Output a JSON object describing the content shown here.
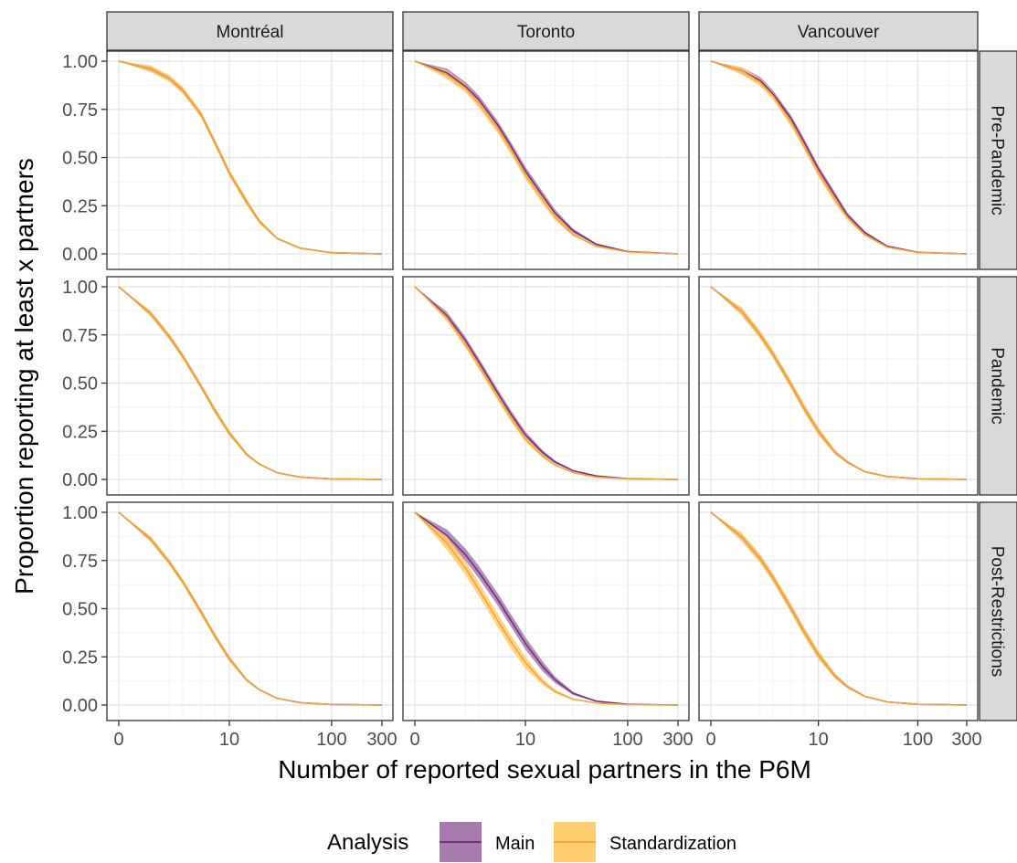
{
  "chart_data": {
    "type": "area",
    "facet_columns": [
      "Montréal",
      "Toronto",
      "Vancouver"
    ],
    "facet_rows": [
      "Pre-Pandemic",
      "Pandemic",
      "Post-Restrictions"
    ],
    "xlabel": "Number of reported sexual partners in the P6M",
    "ylabel": "Proportion reporting at least x partners",
    "x_scale": "pseudo-log (log(1+x))",
    "x_ticks": [
      0,
      10,
      100,
      300
    ],
    "x_tick_labels": [
      "0",
      "10",
      "100",
      "300"
    ],
    "ylim": [
      0,
      1
    ],
    "y_ticks": [
      0,
      0.25,
      0.5,
      0.75,
      1
    ],
    "y_tick_labels": [
      "0.00",
      "0.25",
      "0.50",
      "0.75",
      "1.00"
    ],
    "grid": true,
    "legend": {
      "title": "Analysis",
      "position": "bottom",
      "entries": [
        {
          "name": "Main",
          "fill": "#A87BAF",
          "line": "#7B2D80"
        },
        {
          "name": "Standardization",
          "fill": "#FFCC70",
          "line": "#F4A536"
        }
      ]
    },
    "x_points": [
      0,
      1,
      2,
      3,
      5,
      7,
      10,
      15,
      20,
      30,
      50,
      100,
      300
    ],
    "panels": [
      {
        "city": "Montréal",
        "period": "Pre-Pandemic",
        "main": {
          "y": [
            1,
            0.96,
            0.91,
            0.85,
            0.72,
            0.58,
            0.42,
            0.27,
            0.17,
            0.08,
            0.03,
            0.006,
            0
          ]
        },
        "standardization": {
          "y": [
            1,
            0.96,
            0.91,
            0.85,
            0.72,
            0.58,
            0.42,
            0.27,
            0.17,
            0.08,
            0.03,
            0.006,
            0
          ]
        },
        "band_main": 0.012,
        "band_std": 0.018
      },
      {
        "city": "Toronto",
        "period": "Pre-Pandemic",
        "main": {
          "y": [
            1,
            0.94,
            0.87,
            0.8,
            0.67,
            0.56,
            0.43,
            0.3,
            0.21,
            0.12,
            0.05,
            0.012,
            0
          ]
        },
        "standardization": {
          "y": [
            1,
            0.93,
            0.86,
            0.78,
            0.65,
            0.54,
            0.41,
            0.28,
            0.19,
            0.1,
            0.04,
            0.01,
            0
          ]
        },
        "band_main": 0.022,
        "band_std": 0.022
      },
      {
        "city": "Vancouver",
        "period": "Pre-Pandemic",
        "main": {
          "y": [
            1,
            0.95,
            0.9,
            0.83,
            0.7,
            0.58,
            0.44,
            0.3,
            0.2,
            0.11,
            0.04,
            0.008,
            0
          ]
        },
        "standardization": {
          "y": [
            1,
            0.95,
            0.89,
            0.82,
            0.68,
            0.56,
            0.42,
            0.28,
            0.19,
            0.1,
            0.035,
            0.007,
            0
          ]
        },
        "band_main": 0.018,
        "band_std": 0.02
      },
      {
        "city": "Montréal",
        "period": "Pandemic",
        "main": {
          "y": [
            1,
            0.86,
            0.74,
            0.64,
            0.48,
            0.36,
            0.24,
            0.13,
            0.08,
            0.035,
            0.012,
            0.003,
            0
          ]
        },
        "standardization": {
          "y": [
            1,
            0.86,
            0.74,
            0.64,
            0.48,
            0.36,
            0.24,
            0.13,
            0.08,
            0.035,
            0.012,
            0.003,
            0
          ]
        },
        "band_main": 0.012,
        "band_std": 0.016
      },
      {
        "city": "Toronto",
        "period": "Pandemic",
        "main": {
          "y": [
            1,
            0.85,
            0.72,
            0.61,
            0.45,
            0.34,
            0.23,
            0.14,
            0.09,
            0.045,
            0.018,
            0.004,
            0
          ]
        },
        "standardization": {
          "y": [
            1,
            0.84,
            0.7,
            0.59,
            0.43,
            0.32,
            0.21,
            0.12,
            0.075,
            0.035,
            0.012,
            0.003,
            0
          ]
        },
        "band_main": 0.02,
        "band_std": 0.018
      },
      {
        "city": "Vancouver",
        "period": "Pandemic",
        "main": {
          "y": [
            1,
            0.87,
            0.75,
            0.65,
            0.49,
            0.37,
            0.25,
            0.14,
            0.09,
            0.04,
            0.015,
            0.004,
            0
          ]
        },
        "standardization": {
          "y": [
            1,
            0.87,
            0.75,
            0.65,
            0.49,
            0.37,
            0.25,
            0.14,
            0.09,
            0.04,
            0.015,
            0.004,
            0
          ]
        },
        "band_main": 0.016,
        "band_std": 0.022
      },
      {
        "city": "Montréal",
        "period": "Post-Restrictions",
        "main": {
          "y": [
            1,
            0.86,
            0.74,
            0.64,
            0.48,
            0.36,
            0.24,
            0.13,
            0.08,
            0.035,
            0.012,
            0.003,
            0
          ]
        },
        "standardization": {
          "y": [
            1,
            0.86,
            0.74,
            0.64,
            0.48,
            0.36,
            0.24,
            0.13,
            0.08,
            0.035,
            0.012,
            0.003,
            0
          ]
        },
        "band_main": 0.012,
        "band_std": 0.016
      },
      {
        "city": "Toronto",
        "period": "Post-Restrictions",
        "main": {
          "y": [
            1,
            0.88,
            0.78,
            0.69,
            0.55,
            0.44,
            0.32,
            0.2,
            0.13,
            0.06,
            0.02,
            0.004,
            0
          ]
        },
        "standardization": {
          "y": [
            1,
            0.84,
            0.71,
            0.6,
            0.44,
            0.33,
            0.22,
            0.12,
            0.07,
            0.03,
            0.01,
            0.002,
            0
          ]
        },
        "band_main": 0.032,
        "band_std": 0.035
      },
      {
        "city": "Vancouver",
        "period": "Post-Restrictions",
        "main": {
          "y": [
            1,
            0.87,
            0.76,
            0.66,
            0.5,
            0.38,
            0.26,
            0.15,
            0.095,
            0.045,
            0.016,
            0.004,
            0
          ]
        },
        "standardization": {
          "y": [
            1,
            0.87,
            0.76,
            0.66,
            0.5,
            0.38,
            0.26,
            0.15,
            0.095,
            0.045,
            0.016,
            0.004,
            0
          ]
        },
        "band_main": 0.016,
        "band_std": 0.024
      }
    ]
  }
}
